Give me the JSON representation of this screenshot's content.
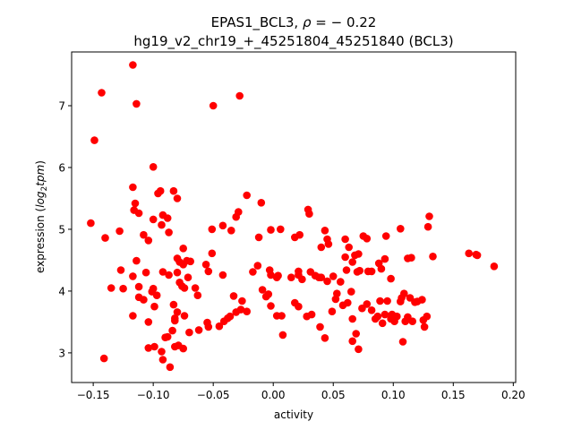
{
  "chart_data": {
    "type": "scatter",
    "title_line1_prefix": "EPAS1_BCL3, ",
    "title_line1_rho": "ρ",
    "title_line1_suffix": " = − 0.22",
    "title_line2": "hg19_v2_chr19_+_45251804_45251840 (BCL3)",
    "xlabel": "activity",
    "ylabel_prefix": "expression (",
    "ylabel_italic": "log",
    "ylabel_sub": "2",
    "ylabel_italic2": "tpm",
    "ylabel_suffix": ")",
    "xlim": [
      -0.168,
      0.202
    ],
    "ylim": [
      2.52,
      7.87
    ],
    "xticks": [
      -0.15,
      -0.1,
      -0.05,
      0.0,
      0.05,
      0.1,
      0.15,
      0.2
    ],
    "xtick_labels": [
      "−0.15",
      "−0.10",
      "−0.05",
      "0.00",
      "0.05",
      "0.10",
      "0.15",
      "0.20"
    ],
    "yticks": [
      3,
      4,
      5,
      6,
      7
    ],
    "ytick_labels": [
      "3",
      "4",
      "5",
      "6",
      "7"
    ],
    "grid": false,
    "marker_color": "#ff0000",
    "points": [
      [
        -0.117,
        7.66
      ],
      [
        -0.143,
        7.21
      ],
      [
        -0.114,
        7.03
      ],
      [
        -0.05,
        7.0
      ],
      [
        -0.028,
        7.16
      ],
      [
        -0.149,
        6.44
      ],
      [
        -0.1,
        6.01
      ],
      [
        -0.117,
        5.68
      ],
      [
        -0.094,
        5.62
      ],
      [
        -0.083,
        5.62
      ],
      [
        -0.096,
        5.58
      ],
      [
        -0.08,
        5.5
      ],
      [
        -0.022,
        5.55
      ],
      [
        -0.01,
        5.43
      ],
      [
        0.029,
        5.32
      ],
      [
        -0.115,
        5.42
      ],
      [
        -0.116,
        5.31
      ],
      [
        -0.112,
        5.26
      ],
      [
        -0.1,
        5.16
      ],
      [
        -0.093,
        5.07
      ],
      [
        -0.088,
        5.18
      ],
      [
        -0.092,
        5.23
      ],
      [
        -0.029,
        5.28
      ],
      [
        -0.031,
        5.2
      ],
      [
        0.03,
        5.25
      ],
      [
        0.13,
        5.21
      ],
      [
        0.129,
        5.04
      ],
      [
        -0.152,
        5.1
      ],
      [
        -0.128,
        4.97
      ],
      [
        -0.14,
        4.86
      ],
      [
        -0.108,
        4.91
      ],
      [
        -0.104,
        4.82
      ],
      [
        -0.087,
        4.95
      ],
      [
        -0.051,
        5.0
      ],
      [
        -0.042,
        5.06
      ],
      [
        -0.035,
        4.98
      ],
      [
        -0.012,
        4.87
      ],
      [
        -0.002,
        4.99
      ],
      [
        0.006,
        5.0
      ],
      [
        0.018,
        4.87
      ],
      [
        0.022,
        4.91
      ],
      [
        0.043,
        4.98
      ],
      [
        0.045,
        4.84
      ],
      [
        0.046,
        4.76
      ],
      [
        0.04,
        4.71
      ],
      [
        0.06,
        4.84
      ],
      [
        0.063,
        4.71
      ],
      [
        0.071,
        4.6
      ],
      [
        0.075,
        4.89
      ],
      [
        0.078,
        4.85
      ],
      [
        0.094,
        4.89
      ],
      [
        0.106,
        5.01
      ],
      [
        0.112,
        4.53
      ],
      [
        0.115,
        4.54
      ],
      [
        0.133,
        4.56
      ],
      [
        0.163,
        4.61
      ],
      [
        0.169,
        4.59
      ],
      [
        0.17,
        4.58
      ],
      [
        0.184,
        4.4
      ],
      [
        -0.075,
        4.69
      ],
      [
        -0.08,
        4.53
      ],
      [
        -0.078,
        4.47
      ],
      [
        -0.072,
        4.49
      ],
      [
        -0.075,
        4.43
      ],
      [
        -0.069,
        4.48
      ],
      [
        -0.056,
        4.43
      ],
      [
        -0.051,
        4.61
      ],
      [
        -0.114,
        4.49
      ],
      [
        -0.127,
        4.34
      ],
      [
        -0.117,
        4.24
      ],
      [
        -0.106,
        4.3
      ],
      [
        -0.092,
        4.31
      ],
      [
        -0.087,
        4.26
      ],
      [
        -0.08,
        4.3
      ],
      [
        -0.071,
        4.22
      ],
      [
        -0.135,
        4.05
      ],
      [
        -0.125,
        4.04
      ],
      [
        -0.112,
        4.07
      ],
      [
        -0.1,
        4.04
      ],
      [
        -0.101,
        3.99
      ],
      [
        -0.097,
        3.93
      ],
      [
        -0.078,
        4.14
      ],
      [
        -0.076,
        4.08
      ],
      [
        -0.074,
        4.05
      ],
      [
        -0.065,
        4.05
      ],
      [
        -0.063,
        3.93
      ],
      [
        -0.054,
        4.32
      ],
      [
        -0.042,
        4.26
      ],
      [
        -0.017,
        4.31
      ],
      [
        -0.013,
        4.41
      ],
      [
        -0.003,
        4.34
      ],
      [
        -0.002,
        4.26
      ],
      [
        0.003,
        4.22
      ],
      [
        0.004,
        4.25
      ],
      [
        0.015,
        4.22
      ],
      [
        0.021,
        4.32
      ],
      [
        0.021,
        4.26
      ],
      [
        0.024,
        4.19
      ],
      [
        0.031,
        4.31
      ],
      [
        0.035,
        4.25
      ],
      [
        0.038,
        4.22
      ],
      [
        0.04,
        4.22
      ],
      [
        0.045,
        4.16
      ],
      [
        0.05,
        4.24
      ],
      [
        0.056,
        4.15
      ],
      [
        0.06,
        4.55
      ],
      [
        0.061,
        4.34
      ],
      [
        0.066,
        4.47
      ],
      [
        0.068,
        4.58
      ],
      [
        0.07,
        4.31
      ],
      [
        0.072,
        4.33
      ],
      [
        0.079,
        4.32
      ],
      [
        0.082,
        4.32
      ],
      [
        0.088,
        4.45
      ],
      [
        0.09,
        4.36
      ],
      [
        0.093,
        4.52
      ],
      [
        0.098,
        4.2
      ],
      [
        -0.112,
        3.9
      ],
      [
        -0.108,
        3.86
      ],
      [
        -0.099,
        3.75
      ],
      [
        -0.083,
        3.78
      ],
      [
        -0.08,
        3.66
      ],
      [
        -0.082,
        3.56
      ],
      [
        -0.082,
        3.52
      ],
      [
        -0.117,
        3.6
      ],
      [
        -0.104,
        3.5
      ],
      [
        -0.084,
        3.36
      ],
      [
        -0.07,
        3.33
      ],
      [
        -0.062,
        3.37
      ],
      [
        -0.055,
        3.49
      ],
      [
        -0.054,
        3.42
      ],
      [
        -0.033,
        3.92
      ],
      [
        -0.026,
        3.84
      ],
      [
        -0.045,
        3.43
      ],
      [
        -0.041,
        3.51
      ],
      [
        -0.038,
        3.56
      ],
      [
        -0.036,
        3.59
      ],
      [
        -0.031,
        3.66
      ],
      [
        -0.027,
        3.7
      ],
      [
        -0.022,
        3.67
      ],
      [
        -0.009,
        4.02
      ],
      [
        -0.004,
        3.95
      ],
      [
        -0.006,
        3.91
      ],
      [
        -0.002,
        3.76
      ],
      [
        0.003,
        3.6
      ],
      [
        0.007,
        3.6
      ],
      [
        0.008,
        3.29
      ],
      [
        0.018,
        3.81
      ],
      [
        0.021,
        3.75
      ],
      [
        0.028,
        3.59
      ],
      [
        0.032,
        3.62
      ],
      [
        0.039,
        3.42
      ],
      [
        0.043,
        3.24
      ],
      [
        0.049,
        3.67
      ],
      [
        0.052,
        3.87
      ],
      [
        0.053,
        3.96
      ],
      [
        0.058,
        3.77
      ],
      [
        0.062,
        3.81
      ],
      [
        0.065,
        3.99
      ],
      [
        0.066,
        3.55
      ],
      [
        0.069,
        3.31
      ],
      [
        0.066,
        3.19
      ],
      [
        0.071,
        3.06
      ],
      [
        0.074,
        3.72
      ],
      [
        0.078,
        3.79
      ],
      [
        0.082,
        3.69
      ],
      [
        0.085,
        3.55
      ],
      [
        0.087,
        3.59
      ],
      [
        0.089,
        3.84
      ],
      [
        0.091,
        3.48
      ],
      [
        0.093,
        3.62
      ],
      [
        0.095,
        3.84
      ],
      [
        0.098,
        3.55
      ],
      [
        0.099,
        3.62
      ],
      [
        0.101,
        3.51
      ],
      [
        0.103,
        3.59
      ],
      [
        0.106,
        3.83
      ],
      [
        0.107,
        3.89
      ],
      [
        0.109,
        3.96
      ],
      [
        0.11,
        3.51
      ],
      [
        0.112,
        3.58
      ],
      [
        0.114,
        3.89
      ],
      [
        0.116,
        3.51
      ],
      [
        0.118,
        3.82
      ],
      [
        0.12,
        3.83
      ],
      [
        0.124,
        3.86
      ],
      [
        0.125,
        3.53
      ],
      [
        0.126,
        3.42
      ],
      [
        0.128,
        3.59
      ],
      [
        0.108,
        3.18
      ],
      [
        -0.104,
        3.08
      ],
      [
        -0.099,
        3.1
      ],
      [
        -0.093,
        3.02
      ],
      [
        -0.092,
        2.89
      ],
      [
        -0.086,
        2.77
      ],
      [
        -0.082,
        3.1
      ],
      [
        -0.079,
        3.12
      ],
      [
        -0.075,
        3.07
      ],
      [
        -0.088,
        3.26
      ],
      [
        -0.09,
        3.25
      ],
      [
        -0.141,
        2.91
      ],
      [
        -0.074,
        3.6
      ]
    ]
  }
}
